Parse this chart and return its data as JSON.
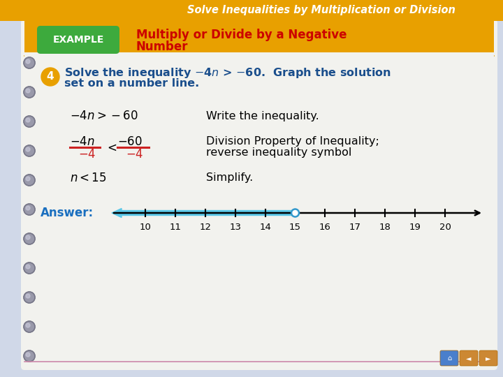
{
  "title_bar_color": "#E8A000",
  "title_bar_text": "Solve Inequalities by Multiplication or Division",
  "title_bar_text_color": "#FFFFFF",
  "example_label": "EXAMPLE",
  "example_box_color": "#3DAA3D",
  "example_box_text_color": "#FFFFFF",
  "main_title_line1": "Multiply or Divide by a Negative",
  "main_title_line2": "Number",
  "main_title_color": "#CC0000",
  "bg_color": "#D0D8E8",
  "notebook_color": "#F2F2EE",
  "problem_number_color": "#E8A000",
  "problem_color": "#1A4E8C",
  "step1_desc": "Write the inequality.",
  "step2_desc_line1": "Division Property of Inequality;",
  "step2_desc_line2": "reverse inequality symbol",
  "step3_desc": "Simplify.",
  "answer_label": "Answer:",
  "answer_color": "#1A6FBF",
  "number_line_ticks": [
    10,
    11,
    12,
    13,
    14,
    15,
    16,
    17,
    18,
    19,
    20
  ],
  "open_circle_at": 15,
  "arrow_color": "#5BC8E8",
  "ring_color": "#3399CC",
  "spine_circle_color": "#9999AA",
  "spine_circle_edge": "#777788",
  "red_color": "#CC2222",
  "nav_blue": "#4A7FCC",
  "nav_orange": "#CC8833"
}
